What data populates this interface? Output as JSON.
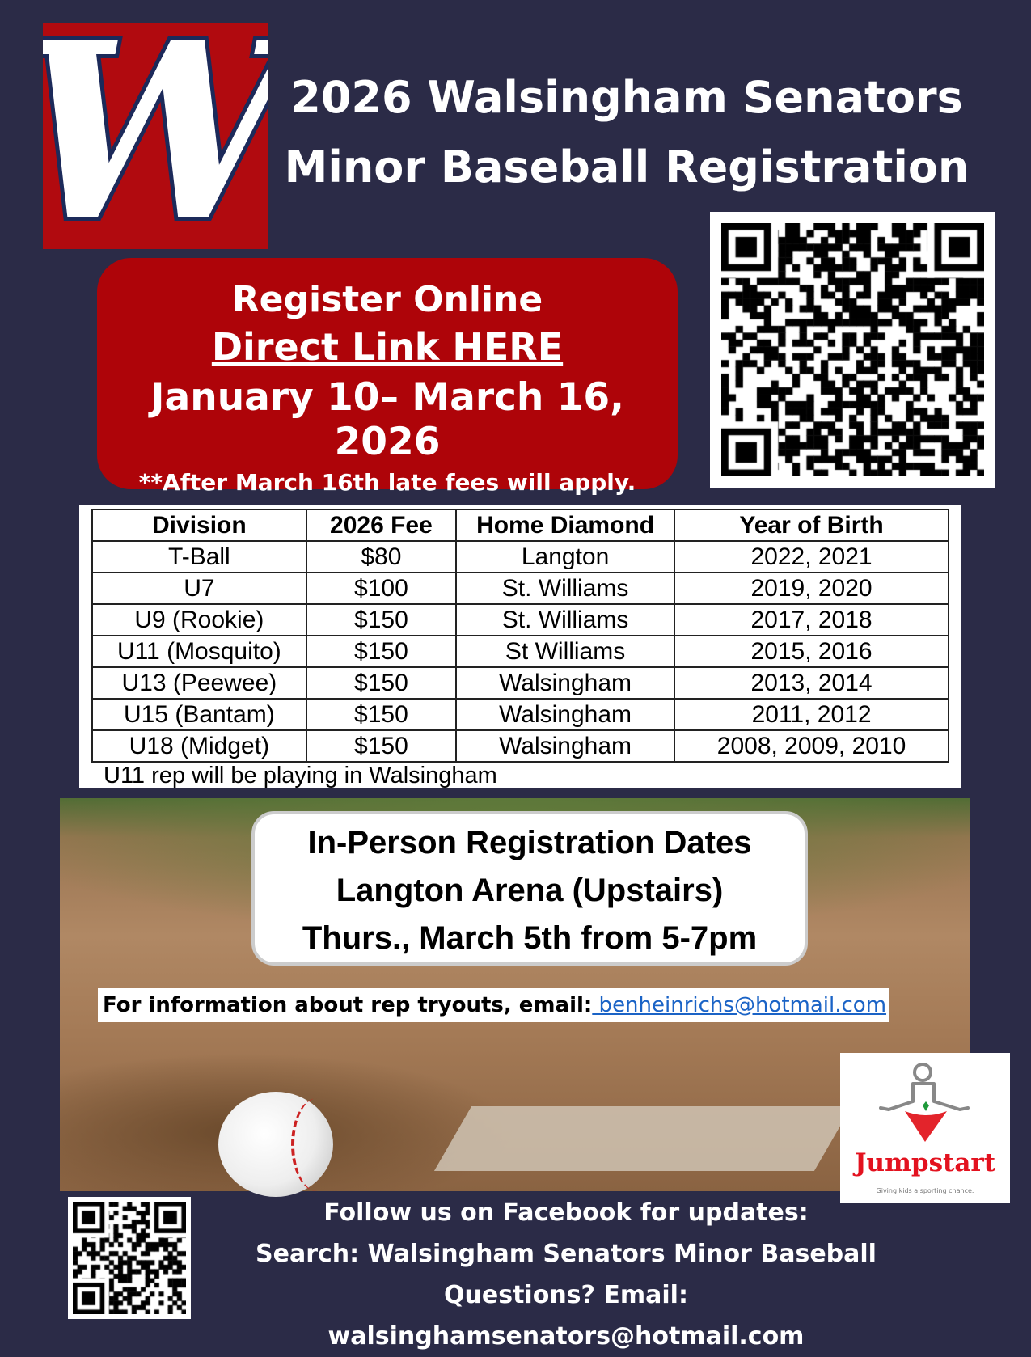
{
  "header": {
    "logo_letter": "W",
    "title_line1": "2026 Walsingham Senators",
    "title_line2": "Minor Baseball Registration"
  },
  "register": {
    "line1": "Register Online",
    "link": "Direct Link HERE",
    "dates": "January 10– March 16, 2026",
    "late_note": "**After March 16th late fees will apply."
  },
  "table": {
    "headers": [
      "Division",
      "2026 Fee",
      "Home Diamond",
      "Year of Birth"
    ],
    "rows": [
      [
        "T-Ball",
        "$80",
        "Langton",
        "2022, 2021"
      ],
      [
        "U7",
        "$100",
        "St. Williams",
        "2019, 2020"
      ],
      [
        "U9 (Rookie)",
        "$150",
        "St. Williams",
        "2017, 2018"
      ],
      [
        "U11 (Mosquito)",
        "$150",
        "St Williams",
        "2015, 2016"
      ],
      [
        "U13 (Peewee)",
        "$150",
        "Walsingham",
        "2013, 2014"
      ],
      [
        "U15 (Bantam)",
        "$150",
        "Walsingham",
        "2011, 2012"
      ],
      [
        "U18 (Midget)",
        "$150",
        "Walsingham",
        "2008, 2009, 2010"
      ]
    ],
    "note": "U11 rep will be playing in Walsingham"
  },
  "inperson": {
    "line1": "In-Person Registration Dates",
    "line2": "Langton Arena (Upstairs)",
    "line3": "Thurs., March 5th from 5-7pm"
  },
  "info": {
    "text": "For information about rep tryouts, email:",
    "email": " benheinrichs@hotmail.com"
  },
  "jumpstart": {
    "name": "Jumpstart",
    "tagline": "Giving kids a sporting chance.",
    "color": "#e3121f"
  },
  "footer": {
    "line1": "Follow us on Facebook for updates:",
    "line2": "Search: Walsingham Senators Minor Baseball",
    "line3": "Questions? Email: walsinghamsenators@hotmail.com"
  },
  "colors": {
    "background": "#2b2b47",
    "red": "#ae0409",
    "link": "#1a63c6"
  }
}
